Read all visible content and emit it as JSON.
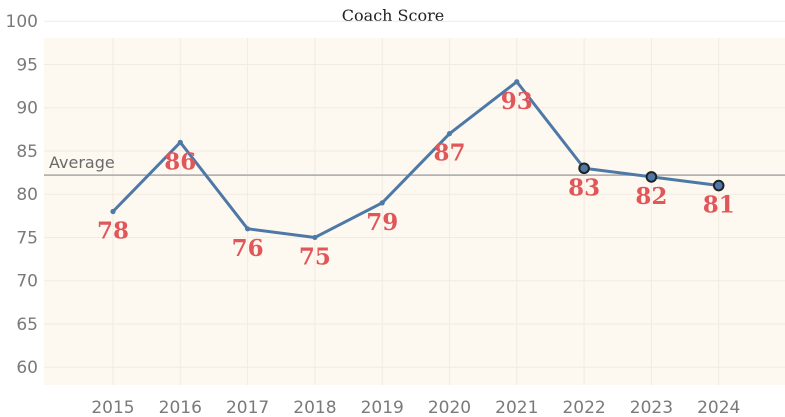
{
  "chart_data": {
    "type": "line",
    "title": "Coach Score",
    "xlabel": "",
    "ylabel": "",
    "categories": [
      "2015",
      "2016",
      "2017",
      "2018",
      "2019",
      "2020",
      "2021",
      "2022",
      "2023",
      "2024"
    ],
    "series": [
      {
        "values": [
          78,
          86,
          76,
          75,
          79,
          87,
          93,
          83,
          82,
          81
        ],
        "labels": [
          "78",
          "86",
          "76",
          "75",
          "79",
          "87",
          "93",
          "83",
          "82",
          "81"
        ],
        "highlighted_points": [
          "2022",
          "2023",
          "2024"
        ]
      }
    ],
    "reference_line": {
      "label": "Average",
      "value": 82.2
    },
    "yticks": [
      60,
      65,
      70,
      75,
      80,
      85,
      90,
      95,
      100
    ],
    "ylim": [
      58,
      101
    ],
    "grid": true,
    "colors": {
      "background": "#fdf9f1",
      "line": "#4e79a7",
      "data_label": "#e15759",
      "reference_line": "#a8a8a8",
      "grid": "#f1ebe0",
      "marker_edge": "#222222"
    }
  }
}
